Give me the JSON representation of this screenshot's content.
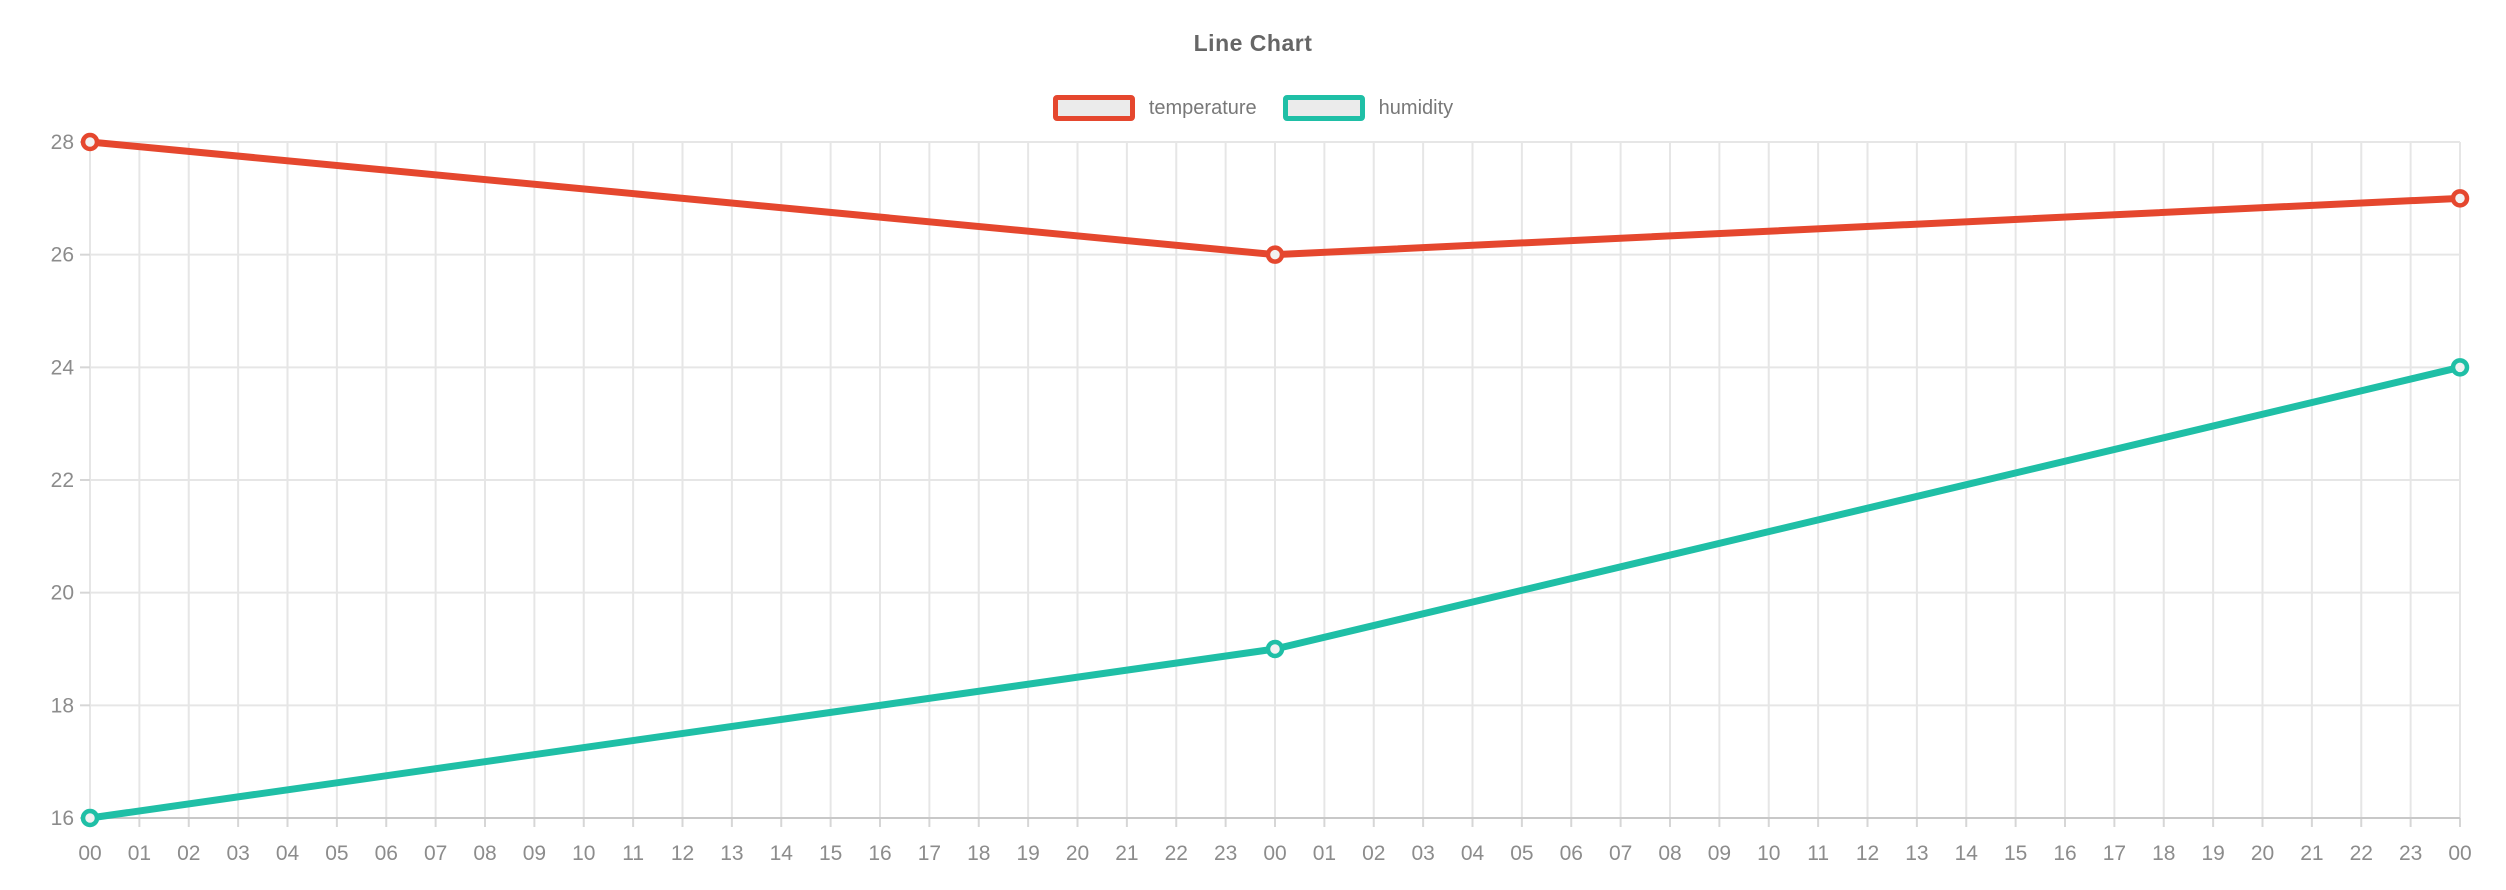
{
  "chart_data": {
    "type": "line",
    "title": "Line Chart",
    "xlabel": "",
    "ylabel": "",
    "x_labels": [
      "00",
      "01",
      "02",
      "03",
      "04",
      "05",
      "06",
      "07",
      "08",
      "09",
      "10",
      "11",
      "12",
      "13",
      "14",
      "15",
      "16",
      "17",
      "18",
      "19",
      "20",
      "21",
      "22",
      "23",
      "00",
      "01",
      "02",
      "03",
      "04",
      "05",
      "06",
      "07",
      "08",
      "09",
      "10",
      "11",
      "12",
      "13",
      "14",
      "15",
      "16",
      "17",
      "18",
      "19",
      "20",
      "21",
      "22",
      "23",
      "00"
    ],
    "y_ticks": [
      16,
      18,
      20,
      22,
      24,
      26,
      28
    ],
    "ylim": [
      16,
      28
    ],
    "grid": true,
    "legend_position": "top-center",
    "series": [
      {
        "name": "temperature",
        "color": "#e5472e",
        "points": [
          {
            "x_index": 0,
            "x_label": "00",
            "value": 28
          },
          {
            "x_index": 24,
            "x_label": "00",
            "value": 26
          },
          {
            "x_index": 48,
            "x_label": "00",
            "value": 27
          }
        ]
      },
      {
        "name": "humidity",
        "color": "#1fbfa6",
        "points": [
          {
            "x_index": 0,
            "x_label": "00",
            "value": 16
          },
          {
            "x_index": 24,
            "x_label": "00",
            "value": 19
          },
          {
            "x_index": 48,
            "x_label": "00",
            "value": 24
          }
        ]
      }
    ],
    "colors": {
      "grid": "#e6e6e6",
      "axis_line": "#c8c8c8",
      "tick": "#d6d6d6",
      "axis_text": "#8c8c8c",
      "title_text": "#666666",
      "legend_text": "#787878",
      "legend_swatch_fill": "#ebebeb",
      "marker_fill": "#f2f2f2",
      "background": "#ffffff"
    }
  }
}
